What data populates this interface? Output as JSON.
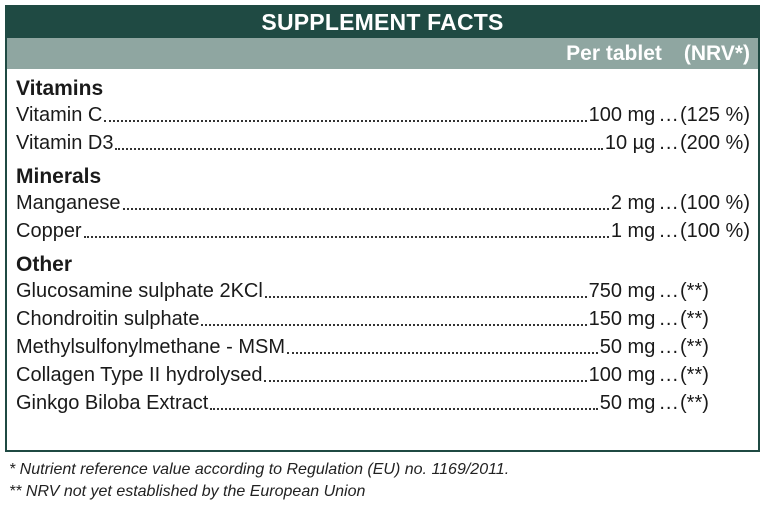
{
  "header": {
    "title": "SUPPLEMENT FACTS",
    "per_label": "Per tablet",
    "nrv_label": "(NRV*)"
  },
  "sections": [
    {
      "title": "Vitamins",
      "rows": [
        {
          "name": "Vitamin C",
          "amount": "100 mg",
          "sep": "...",
          "nrv": "(125 %)"
        },
        {
          "name": "Vitamin D3",
          "amount": "10 µg",
          "sep": "...",
          "nrv": "(200 %)"
        }
      ]
    },
    {
      "title": "Minerals",
      "rows": [
        {
          "name": "Manganese",
          "amount": "2 mg",
          "sep": "...",
          "nrv": "(100 %)"
        },
        {
          "name": "Copper",
          "amount": "1 mg",
          "sep": "...",
          "nrv": "(100 %)"
        }
      ]
    },
    {
      "title": "Other",
      "rows": [
        {
          "name": "Glucosamine sulphate 2KCl",
          "amount": "750 mg",
          "sep": "...",
          "nrv": "(**)"
        },
        {
          "name": "Chondroitin sulphate",
          "amount": "150 mg",
          "sep": "...",
          "nrv": "(**)"
        },
        {
          "name": "Methylsulfonylmethane - MSM",
          "amount": "50 mg",
          "sep": "...",
          "nrv": "(**)"
        },
        {
          "name": "Collagen Type II hydrolysed",
          "amount": "100 mg",
          "sep": "...",
          "nrv": "(**)"
        },
        {
          "name": "Ginkgo Biloba Extract",
          "amount": "50 mg",
          "sep": "...",
          "nrv": "(**)"
        }
      ]
    }
  ],
  "footnotes": {
    "note1": "* Nutrient reference value according to Regulation (EU) no. 1169/2011.",
    "note2": "** NRV not yet established by the European Union"
  },
  "colors": {
    "title_bg": "#1f4a43",
    "subheader_bg": "#8fa6a1"
  }
}
